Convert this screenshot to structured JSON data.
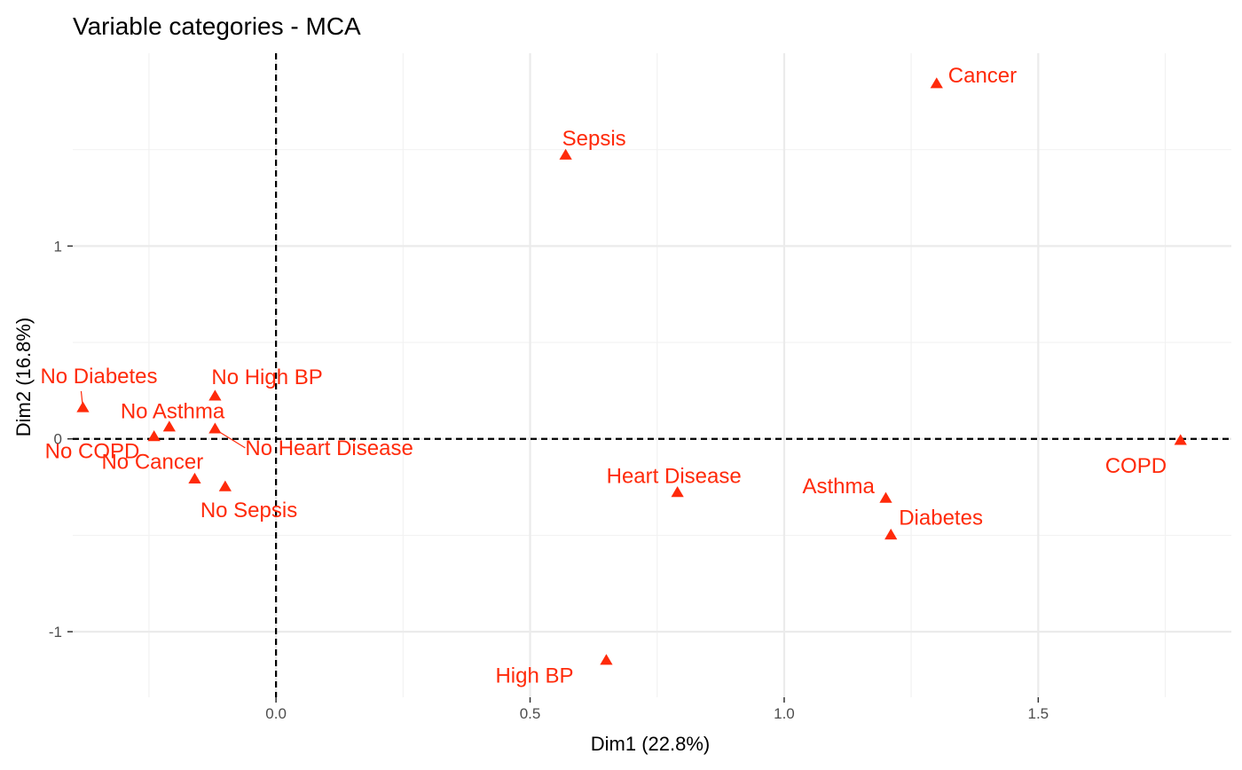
{
  "chart_data": {
    "type": "scatter",
    "title": "Variable categories - MCA",
    "xlabel": "Dim1 (22.8%)",
    "ylabel": "Dim2 (16.8%)",
    "xlim": [
      -0.4,
      1.88
    ],
    "ylim": [
      -1.34,
      2.0
    ],
    "xticks": [
      0.0,
      0.5,
      1.0,
      1.5
    ],
    "xtick_labels": [
      "0.0",
      "0.5",
      "1.0",
      "1.5"
    ],
    "yticks": [
      -1,
      0,
      1
    ],
    "ytick_labels": [
      "-1",
      "0",
      "1"
    ],
    "reference_lines": {
      "x": 0,
      "y": 0,
      "style": "dashed"
    },
    "grid": true,
    "point_color": "#ff2a0a",
    "marker": "triangle",
    "points": [
      {
        "label": "Cancer",
        "x": 1.3,
        "y": 1.84
      },
      {
        "label": "Sepsis",
        "x": 0.57,
        "y": 1.47
      },
      {
        "label": "No Diabetes",
        "x": -0.38,
        "y": 0.16
      },
      {
        "label": "No High BP",
        "x": -0.12,
        "y": 0.22
      },
      {
        "label": "No Asthma",
        "x": -0.21,
        "y": 0.06
      },
      {
        "label": "No COPD",
        "x": -0.24,
        "y": 0.01
      },
      {
        "label": "No Heart Disease",
        "x": -0.12,
        "y": 0.05
      },
      {
        "label": "No Cancer",
        "x": -0.16,
        "y": -0.21
      },
      {
        "label": "No Sepsis",
        "x": -0.1,
        "y": -0.25
      },
      {
        "label": "Heart Disease",
        "x": 0.79,
        "y": -0.28
      },
      {
        "label": "Asthma",
        "x": 1.2,
        "y": -0.31
      },
      {
        "label": "Diabetes",
        "x": 1.21,
        "y": -0.5
      },
      {
        "label": "COPD",
        "x": 1.78,
        "y": -0.01
      },
      {
        "label": "High BP",
        "x": 0.65,
        "y": -1.15
      }
    ]
  }
}
